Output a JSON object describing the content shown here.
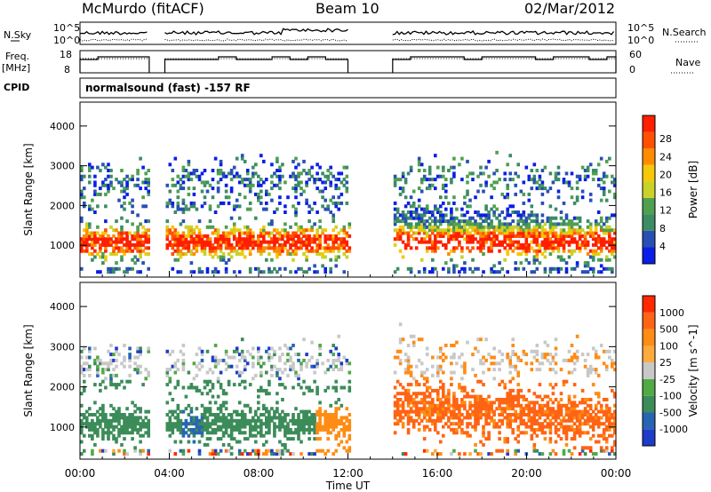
{
  "header": {
    "station": "McMurdo (fitACF)",
    "beam": "Beam 10",
    "date": "02/Mar/2012"
  },
  "top_panels": {
    "nsky_label": "N.Sky",
    "nsky_ticks": [
      "10^5",
      "10^0"
    ],
    "nsearch_label": "N.Search",
    "freq_label": "Freq.",
    "freq_unit": "[MHz]",
    "freq_ticks": [
      "18",
      "8"
    ],
    "nave_label": "Nave",
    "nave_ticks": [
      "60",
      "0"
    ],
    "cpid_label": "CPID",
    "cpid_text": "normalsound (fast) -157 RF"
  },
  "chart_data": [
    {
      "type": "heatmap",
      "panel": "power",
      "ylabel": "Slant Range [km]",
      "yticks": [
        1000,
        2000,
        3000,
        4000
      ],
      "ylim": [
        200,
        4600
      ],
      "xlim_hours": [
        0,
        24
      ],
      "colorbar": {
        "label": "Power [dB]",
        "ticks": [
          "4",
          "8",
          "12",
          "16",
          "20",
          "24",
          "28"
        ],
        "colors": [
          "#0a1ee6",
          "#2850b4",
          "#3c8c64",
          "#50a050",
          "#c8d228",
          "#f5c80a",
          "#ff8c00",
          "#ff5000",
          "#ff1e00"
        ]
      },
      "data_gaps_hours": [
        [
          3.1,
          3.8
        ],
        [
          12.0,
          14.0
        ]
      ]
    },
    {
      "type": "heatmap",
      "panel": "velocity",
      "ylabel": "Slant Range [km]",
      "yticks": [
        1000,
        2000,
        3000,
        4000
      ],
      "ylim": [
        200,
        4600
      ],
      "xlim_hours": [
        0,
        24
      ],
      "colorbar": {
        "label": "Velocity [m s^-1]",
        "ticks": [
          "1000",
          "500",
          "100",
          "25",
          "-25",
          "-100",
          "-500",
          "-1000"
        ],
        "colors": [
          "#1e3cc8",
          "#2864b4",
          "#3c8c5a",
          "#50aa46",
          "#c8c8c8",
          "#ffaa3c",
          "#ff8c14",
          "#ff6414",
          "#ff2800"
        ]
      },
      "data_gaps_hours": [
        [
          3.1,
          3.8
        ],
        [
          12.0,
          14.0
        ]
      ]
    }
  ],
  "x_axis": {
    "label": "Time UT",
    "ticks": [
      "00:00",
      "04:00",
      "08:00",
      "12:00",
      "16:00",
      "20:00",
      "00:00"
    ]
  }
}
